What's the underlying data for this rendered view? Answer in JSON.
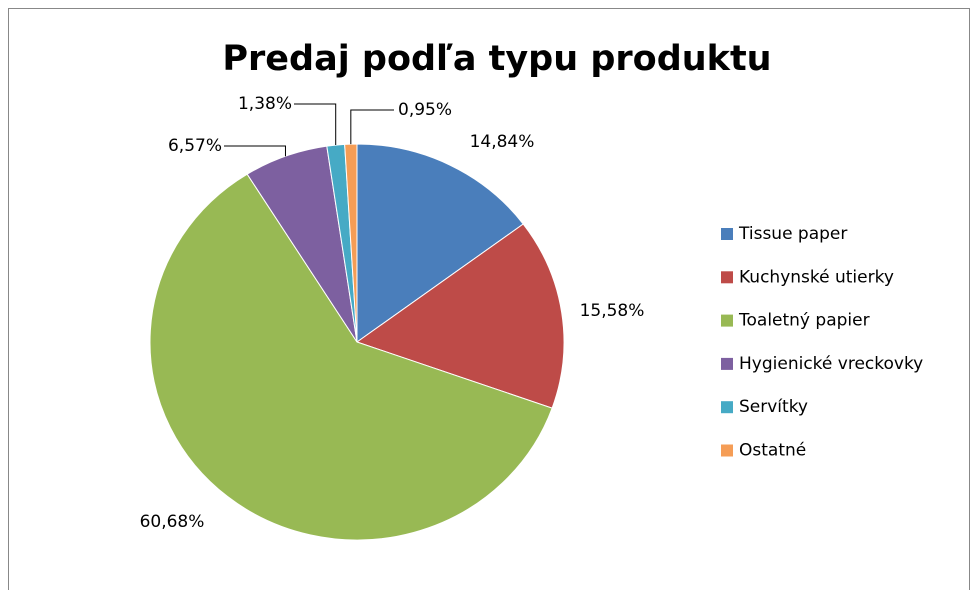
{
  "chart_data": {
    "type": "pie",
    "title": "Predaj podľa typu produktu",
    "categories": [
      "Tissue paper",
      "Kuchynské utierky",
      "Toaletný papier",
      "Hygienické vreckovky",
      "Servítky",
      "Ostatné"
    ],
    "values": [
      14.84,
      15.58,
      60.68,
      6.57,
      1.38,
      0.95
    ],
    "value_labels": [
      "14,84%",
      "15,58%",
      "60,68%",
      "6,57%",
      "1,38%",
      "0,95%"
    ],
    "colors": [
      "#4a7ebb",
      "#be4b48",
      "#98b954",
      "#7d60a0",
      "#46aac5",
      "#f59d56"
    ],
    "legend": "right"
  }
}
